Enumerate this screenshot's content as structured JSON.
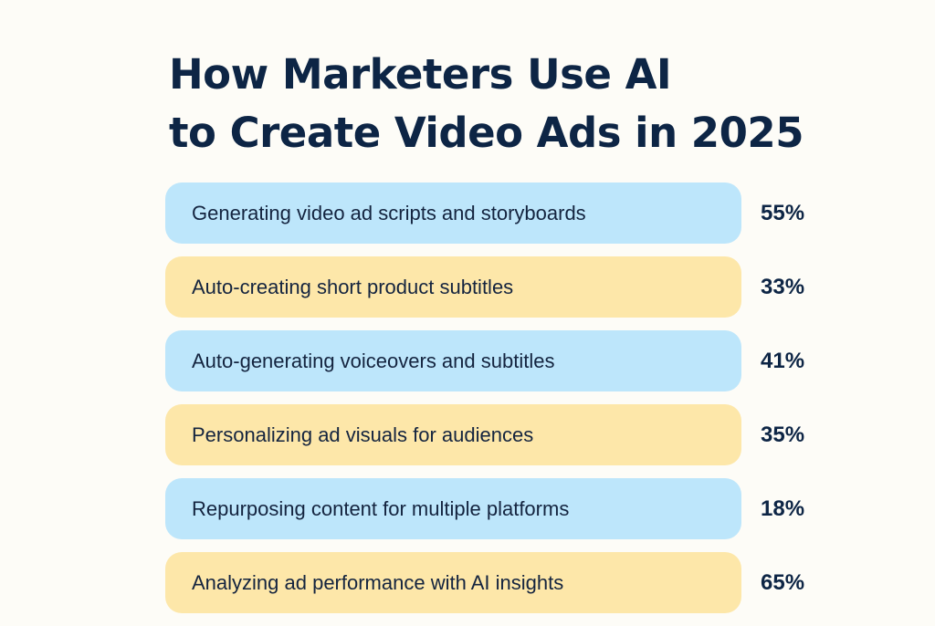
{
  "title": {
    "line1": "How Marketers Use AI",
    "line2": "to Create Video Ads in 2025"
  },
  "colors": {
    "background": "#fdfcf7",
    "blue_pill": "#bde6fb",
    "yellow_pill": "#fde7a9",
    "text": "#0d2545"
  },
  "items": [
    {
      "label": "Generating video ad scripts and storyboards",
      "value": "55%",
      "color": "blue"
    },
    {
      "label": "Auto-creating short product subtitles",
      "value": "33%",
      "color": "yellow"
    },
    {
      "label": "Auto-generating voiceovers and subtitles",
      "value": "41%",
      "color": "blue"
    },
    {
      "label": "Personalizing ad visuals for audiences",
      "value": "35%",
      "color": "yellow"
    },
    {
      "label": "Repurposing content for multiple platforms",
      "value": "18%",
      "color": "blue"
    },
    {
      "label": "Analyzing ad performance with AI insights",
      "value": "65%",
      "color": "yellow"
    }
  ],
  "chart_data": {
    "type": "table",
    "title": "How Marketers Use AI to Create Video Ads in 2025",
    "categories": [
      "Generating video ad scripts and storyboards",
      "Auto-creating short product subtitles",
      "Auto-generating voiceovers and subtitles",
      "Personalizing ad visuals for audiences",
      "Repurposing content for multiple platforms",
      "Analyzing ad performance with AI insights"
    ],
    "values": [
      55,
      33,
      41,
      35,
      18,
      65
    ],
    "unit": "%",
    "xlabel": "",
    "ylabel": ""
  }
}
